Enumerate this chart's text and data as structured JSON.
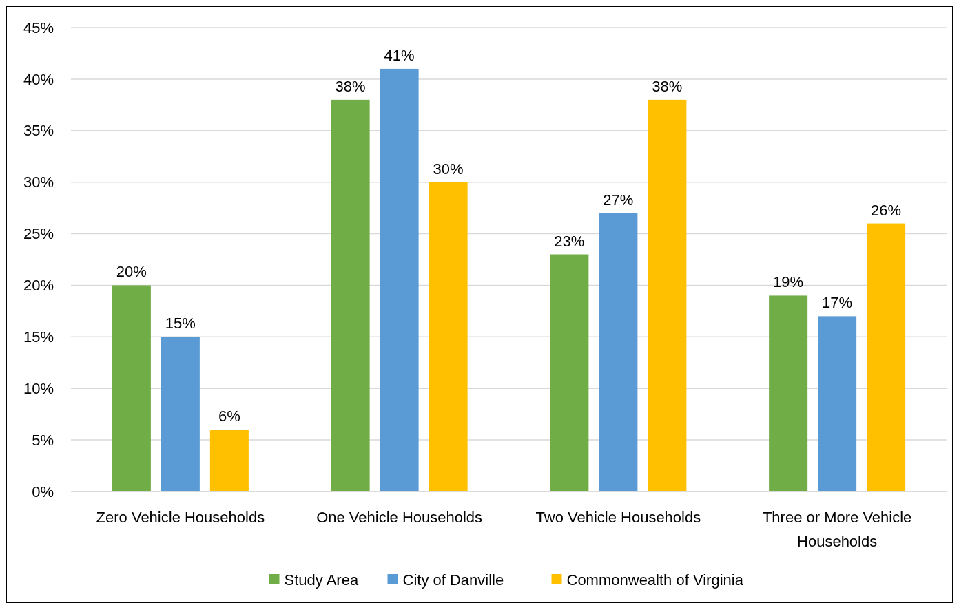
{
  "chart_data": {
    "type": "bar",
    "categories": [
      "Zero Vehicle Households",
      "One Vehicle Households",
      "Two Vehicle Households",
      "Three or More Vehicle Households"
    ],
    "series": [
      {
        "name": "Study Area",
        "color": "#70ad47",
        "values": [
          20,
          38,
          23,
          19
        ],
        "value_labels": [
          "20%",
          "38%",
          "23%",
          "19%"
        ]
      },
      {
        "name": "City of Danville",
        "color": "#5b9bd5",
        "values": [
          15,
          41,
          27,
          17
        ],
        "value_labels": [
          "15%",
          "41%",
          "27%",
          "17%"
        ]
      },
      {
        "name": "Commonwealth of Virginia",
        "color": "#ffc000",
        "values": [
          6,
          30,
          38,
          26
        ],
        "value_labels": [
          "6%",
          "30%",
          "38%",
          "26%"
        ]
      }
    ],
    "ylim": [
      0,
      45
    ],
    "yticks": [
      {
        "value": 0,
        "label": "0%"
      },
      {
        "value": 5,
        "label": "5%"
      },
      {
        "value": 10,
        "label": "10%"
      },
      {
        "value": 15,
        "label": "15%"
      },
      {
        "value": 20,
        "label": "20%"
      },
      {
        "value": 25,
        "label": "25%"
      },
      {
        "value": 30,
        "label": "30%"
      },
      {
        "value": 35,
        "label": "35%"
      },
      {
        "value": 40,
        "label": "40%"
      },
      {
        "value": 45,
        "label": "45%"
      }
    ],
    "grid": "y",
    "legend": "bottom"
  }
}
